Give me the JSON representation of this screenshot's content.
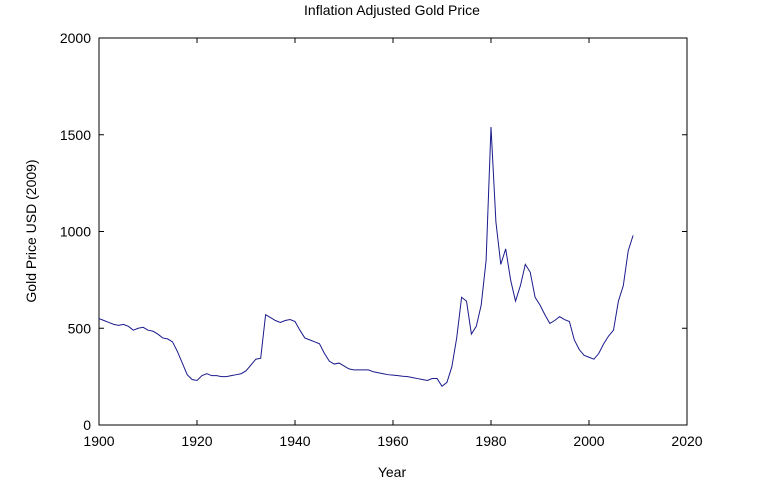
{
  "chart_data": {
    "type": "line",
    "title": "Inflation Adjusted Gold Price",
    "xlabel": "Year",
    "ylabel": "Gold Price USD (2009)",
    "xlim": [
      1900,
      2020
    ],
    "ylim": [
      0,
      2000
    ],
    "xticks": [
      1900,
      1920,
      1940,
      1960,
      1980,
      2000,
      2020
    ],
    "yticks": [
      0,
      500,
      1000,
      1500,
      2000
    ],
    "grid": false,
    "series": [
      {
        "color": "#1a1a8c",
        "x": [
          1900,
          1901,
          1902,
          1903,
          1904,
          1905,
          1906,
          1907,
          1908,
          1909,
          1910,
          1911,
          1912,
          1913,
          1914,
          1915,
          1916,
          1917,
          1918,
          1919,
          1920,
          1921,
          1922,
          1923,
          1924,
          1925,
          1926,
          1927,
          1928,
          1929,
          1930,
          1931,
          1932,
          1933,
          1934,
          1935,
          1936,
          1937,
          1938,
          1939,
          1940,
          1941,
          1942,
          1943,
          1944,
          1945,
          1946,
          1947,
          1948,
          1949,
          1950,
          1951,
          1952,
          1953,
          1954,
          1955,
          1956,
          1957,
          1958,
          1959,
          1960,
          1961,
          1962,
          1963,
          1964,
          1965,
          1966,
          1967,
          1968,
          1969,
          1970,
          1971,
          1972,
          1973,
          1974,
          1975,
          1976,
          1977,
          1978,
          1979,
          1980,
          1981,
          1982,
          1983,
          1984,
          1985,
          1986,
          1987,
          1988,
          1989,
          1990,
          1991,
          1992,
          1993,
          1994,
          1995,
          1996,
          1997,
          1998,
          1999,
          2000,
          2001,
          2002,
          2003,
          2004,
          2005,
          2006,
          2007,
          2008,
          2009
        ],
        "y": [
          550,
          540,
          530,
          520,
          515,
          520,
          510,
          490,
          500,
          505,
          490,
          485,
          470,
          450,
          445,
          430,
          380,
          320,
          260,
          235,
          230,
          255,
          265,
          255,
          255,
          250,
          250,
          255,
          260,
          265,
          280,
          310,
          340,
          345,
          570,
          555,
          540,
          530,
          540,
          545,
          535,
          490,
          450,
          440,
          430,
          420,
          370,
          330,
          315,
          320,
          305,
          290,
          285,
          285,
          285,
          285,
          275,
          270,
          265,
          260,
          258,
          255,
          252,
          250,
          245,
          240,
          235,
          230,
          240,
          240,
          200,
          220,
          300,
          450,
          660,
          640,
          470,
          510,
          620,
          850,
          1540,
          1050,
          830,
          910,
          750,
          640,
          720,
          830,
          790,
          660,
          620,
          570,
          525,
          540,
          560,
          545,
          535,
          440,
          390,
          360,
          350,
          340,
          370,
          420,
          460,
          490,
          640,
          720,
          900,
          980
        ]
      }
    ]
  }
}
